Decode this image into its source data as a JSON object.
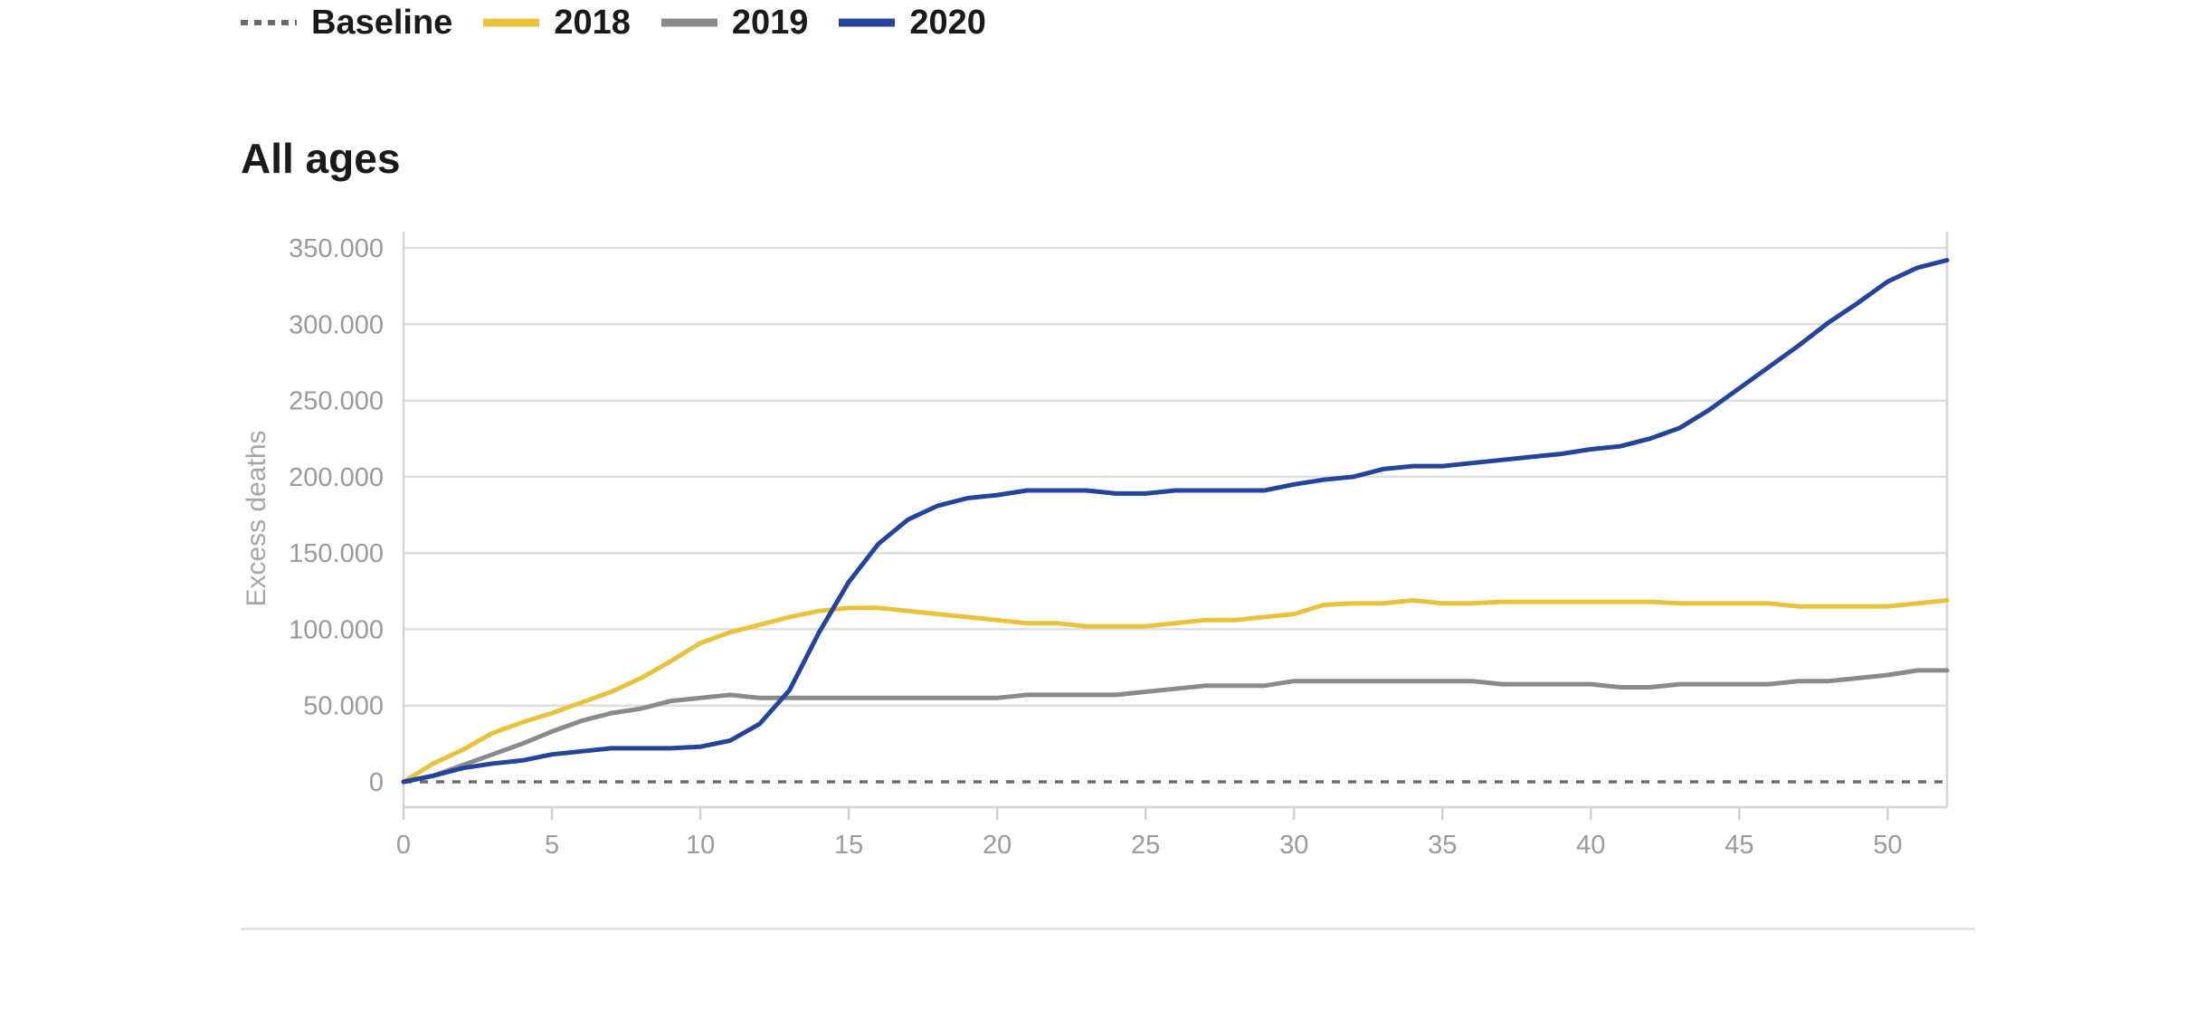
{
  "legend": {
    "items": [
      {
        "label": "Baseline",
        "color": "#6b6b6b",
        "style": "dashed"
      },
      {
        "label": "2018",
        "color": "#e8c23c",
        "style": "solid"
      },
      {
        "label": "2019",
        "color": "#8a8a8a",
        "style": "solid"
      },
      {
        "label": "2020",
        "color": "#24449c",
        "style": "solid"
      }
    ]
  },
  "panel": {
    "title": "All ages"
  },
  "chart_data": {
    "type": "line",
    "title": "All ages",
    "xlabel": "",
    "ylabel": "Excess deaths",
    "xlim": [
      0,
      52
    ],
    "ylim": [
      0,
      350000
    ],
    "xticks": [
      0,
      5,
      10,
      15,
      20,
      25,
      30,
      35,
      40,
      45,
      50
    ],
    "xtick_labels": [
      "0",
      "5",
      "10",
      "15",
      "20",
      "25",
      "30",
      "35",
      "40",
      "45",
      "50"
    ],
    "yticks": [
      0,
      50000,
      100000,
      150000,
      200000,
      250000,
      300000,
      350000
    ],
    "ytick_labels": [
      "0",
      "50.000",
      "100.000",
      "150.000",
      "200.000",
      "250.000",
      "300.000",
      "350.000"
    ],
    "grid": true,
    "legend_position": "top-left",
    "x": [
      0,
      1,
      2,
      3,
      4,
      5,
      6,
      7,
      8,
      9,
      10,
      11,
      12,
      13,
      14,
      15,
      16,
      17,
      18,
      19,
      20,
      21,
      22,
      23,
      24,
      25,
      26,
      27,
      28,
      29,
      30,
      31,
      32,
      33,
      34,
      35,
      36,
      37,
      38,
      39,
      40,
      41,
      42,
      43,
      44,
      45,
      46,
      47,
      48,
      49,
      50,
      51,
      52
    ],
    "series": [
      {
        "name": "Baseline",
        "color": "#6b6b6b",
        "style": "dashed",
        "values": [
          0,
          0,
          0,
          0,
          0,
          0,
          0,
          0,
          0,
          0,
          0,
          0,
          0,
          0,
          0,
          0,
          0,
          0,
          0,
          0,
          0,
          0,
          0,
          0,
          0,
          0,
          0,
          0,
          0,
          0,
          0,
          0,
          0,
          0,
          0,
          0,
          0,
          0,
          0,
          0,
          0,
          0,
          0,
          0,
          0,
          0,
          0,
          0,
          0,
          0,
          0,
          0,
          0
        ]
      },
      {
        "name": "2018",
        "color": "#e8c23c",
        "style": "solid",
        "values": [
          0,
          12000,
          21000,
          32000,
          39000,
          45000,
          52000,
          59000,
          68000,
          79000,
          91000,
          98000,
          103000,
          108000,
          112000,
          114000,
          114000,
          112000,
          110000,
          108000,
          106000,
          104000,
          104000,
          102000,
          102000,
          102000,
          104000,
          106000,
          106000,
          108000,
          110000,
          116000,
          117000,
          117000,
          119000,
          117000,
          117000,
          118000,
          118000,
          118000,
          118000,
          118000,
          118000,
          117000,
          117000,
          117000,
          117000,
          115000,
          115000,
          115000,
          115000,
          117000,
          119000
        ]
      },
      {
        "name": "2019",
        "color": "#8a8a8a",
        "style": "solid",
        "values": [
          0,
          4000,
          11000,
          18000,
          25000,
          33000,
          40000,
          45000,
          48000,
          53000,
          55000,
          57000,
          55000,
          55000,
          55000,
          55000,
          55000,
          55000,
          55000,
          55000,
          55000,
          57000,
          57000,
          57000,
          57000,
          59000,
          61000,
          63000,
          63000,
          63000,
          66000,
          66000,
          66000,
          66000,
          66000,
          66000,
          66000,
          64000,
          64000,
          64000,
          64000,
          62000,
          62000,
          64000,
          64000,
          64000,
          64000,
          66000,
          66000,
          68000,
          70000,
          73000,
          73000
        ]
      },
      {
        "name": "2020",
        "color": "#24449c",
        "style": "solid",
        "values": [
          0,
          4000,
          9000,
          12000,
          14000,
          18000,
          20000,
          22000,
          22000,
          22000,
          23000,
          27000,
          38000,
          60000,
          98000,
          131000,
          156000,
          172000,
          181000,
          186000,
          188000,
          191000,
          191000,
          191000,
          189000,
          189000,
          191000,
          191000,
          191000,
          191000,
          195000,
          198000,
          200000,
          205000,
          207000,
          207000,
          209000,
          211000,
          213000,
          215000,
          218000,
          220000,
          225000,
          232000,
          244000,
          258000,
          272000,
          286000,
          301000,
          314000,
          328000,
          337000,
          342000
        ]
      }
    ]
  }
}
